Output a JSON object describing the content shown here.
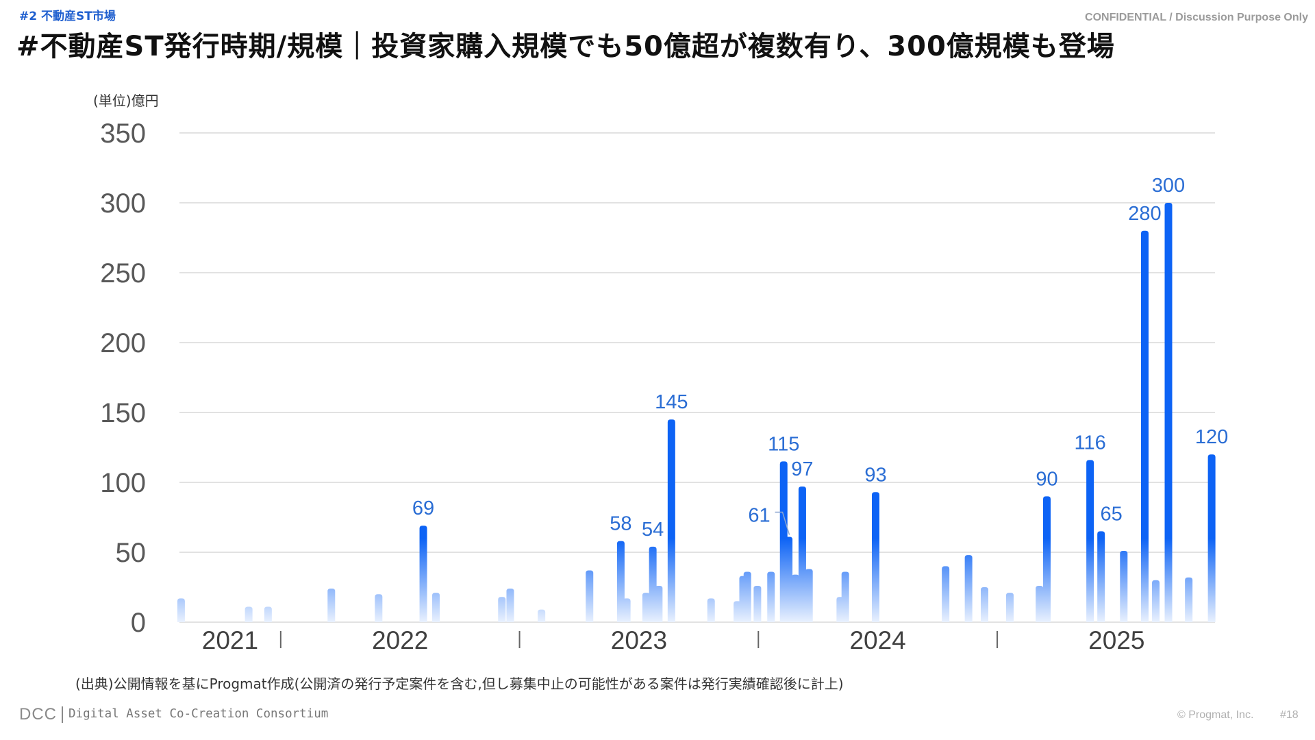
{
  "header": {
    "section_tag": "#2 不動産ST市場",
    "confidential": "CONFIDENTIAL / Discussion Purpose Only",
    "title": "#不動産ST発行時期/規模｜投資家購入規模でも50億超が複数有り、300億規模も登場"
  },
  "chart_data": {
    "type": "bar",
    "ylabel": "(単位)億円",
    "ylim": [
      0,
      350
    ],
    "y_ticks": [
      0,
      50,
      100,
      150,
      200,
      250,
      300,
      350
    ],
    "xlim": [
      2021.576,
      2025.912
    ],
    "x_tick_labels": [
      "2021",
      "2022",
      "2023",
      "2024",
      "2025"
    ],
    "grid": "horizontal",
    "bars": [
      {
        "x": 2021.583,
        "y": 17
      },
      {
        "x": 2021.866,
        "y": 11
      },
      {
        "x": 2021.947,
        "y": 11
      },
      {
        "x": 2022.212,
        "y": 24
      },
      {
        "x": 2022.41,
        "y": 20
      },
      {
        "x": 2022.597,
        "y": 69,
        "label": "69"
      },
      {
        "x": 2022.65,
        "y": 21
      },
      {
        "x": 2022.926,
        "y": 18
      },
      {
        "x": 2022.961,
        "y": 24
      },
      {
        "x": 2023.092,
        "y": 9
      },
      {
        "x": 2023.293,
        "y": 37
      },
      {
        "x": 2023.424,
        "y": 58,
        "label": "58"
      },
      {
        "x": 2023.449,
        "y": 17
      },
      {
        "x": 2023.53,
        "y": 21
      },
      {
        "x": 2023.558,
        "y": 54,
        "label": "54"
      },
      {
        "x": 2023.583,
        "y": 26
      },
      {
        "x": 2023.636,
        "y": 145,
        "label": "145"
      },
      {
        "x": 2023.802,
        "y": 17
      },
      {
        "x": 2023.912,
        "y": 15
      },
      {
        "x": 2023.936,
        "y": 33
      },
      {
        "x": 2023.954,
        "y": 36
      },
      {
        "x": 2023.996,
        "y": 26
      },
      {
        "x": 2024.053,
        "y": 36
      },
      {
        "x": 2024.106,
        "y": 115,
        "label": "115"
      },
      {
        "x": 2024.127,
        "y": 61,
        "label": "61"
      },
      {
        "x": 2024.155,
        "y": 34
      },
      {
        "x": 2024.184,
        "y": 97,
        "label": "97"
      },
      {
        "x": 2024.212,
        "y": 38
      },
      {
        "x": 2024.343,
        "y": 18
      },
      {
        "x": 2024.364,
        "y": 36
      },
      {
        "x": 2024.491,
        "y": 93,
        "label": "93"
      },
      {
        "x": 2024.784,
        "y": 40
      },
      {
        "x": 2024.88,
        "y": 48
      },
      {
        "x": 2024.947,
        "y": 25
      },
      {
        "x": 2025.053,
        "y": 21
      },
      {
        "x": 2025.177,
        "y": 26
      },
      {
        "x": 2025.208,
        "y": 90,
        "label": "90"
      },
      {
        "x": 2025.389,
        "y": 116,
        "label": "116"
      },
      {
        "x": 2025.435,
        "y": 65,
        "label": "65"
      },
      {
        "x": 2025.53,
        "y": 51
      },
      {
        "x": 2025.618,
        "y": 280,
        "label": "280"
      },
      {
        "x": 2025.664,
        "y": 30
      },
      {
        "x": 2025.717,
        "y": 300,
        "label": "300"
      },
      {
        "x": 2025.802,
        "y": 32
      },
      {
        "x": 2025.898,
        "y": 120,
        "label": "120"
      }
    ]
  },
  "source_note": "(出典)公開情報を基にProgmat作成(公開済の発行予定案件を含む,但し募集中止の可能性がある案件は発行実績確認後に計上)",
  "footer": {
    "logo": "DCC",
    "consortium": "Digital Asset Co-Creation Consortium",
    "copyright": "© Progmat, Inc.",
    "page": "#18"
  },
  "colors": {
    "accent": "#1f5fcf",
    "bar_top": "#0d63f5",
    "bar_bottom": "#e9f1fe",
    "data_label": "#2a6dd4",
    "grid": "#d9d9d9",
    "leader_line": "#8aa6cf"
  }
}
